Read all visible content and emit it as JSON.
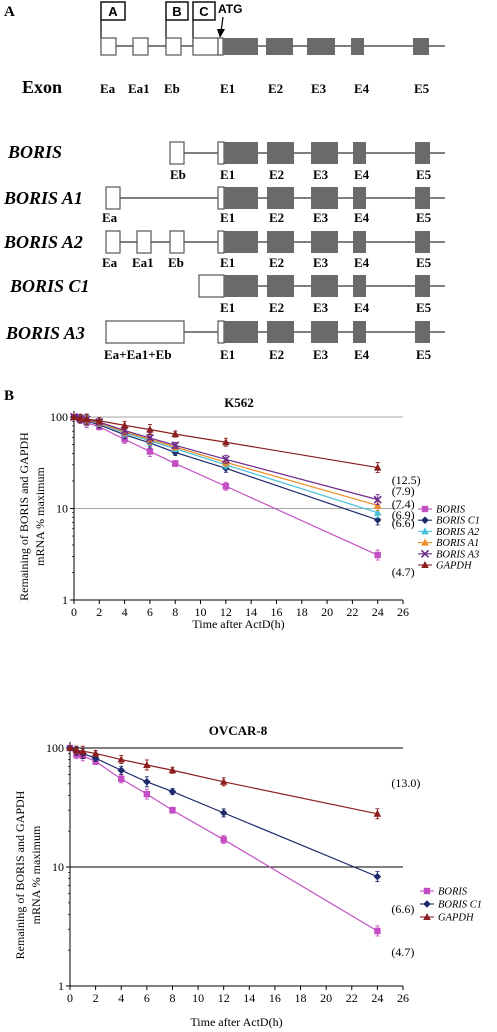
{
  "panel_a": {
    "letter": "A",
    "boxes": [
      "A",
      "B",
      "C"
    ],
    "atg": "ATG",
    "exon_row_title": "Exon",
    "exon_labels": {
      "ea": "Ea",
      "ea1": "Ea1",
      "eb": "Eb",
      "e1": "E1",
      "e2": "E2",
      "e3": "E3",
      "e4": "E4",
      "e5": "E5",
      "combined": "Ea+Ea1+Eb"
    },
    "isoforms": [
      "BORIS",
      "BORIS A1",
      "BORIS A2",
      "BORIS C1",
      "BORIS A3"
    ]
  },
  "panel_b": {
    "letter": "B"
  },
  "chart_data": [
    {
      "type": "line",
      "title": "K562",
      "xlabel": "Time after ActD(h)",
      "ylabel": [
        "Remaining of BORIS and GAPDH",
        "mRNA % maximum"
      ],
      "x": [
        0,
        0.5,
        1,
        2,
        4,
        6,
        8,
        12,
        24
      ],
      "xlim": [
        0,
        26
      ],
      "xticks": [
        "0",
        "2",
        "4",
        "6",
        "8",
        "10",
        "12",
        "14",
        "16",
        "18",
        "20",
        "22",
        "24",
        "26"
      ],
      "ylim": [
        1,
        100
      ],
      "yscale": "log",
      "yticks": [
        "100",
        "10",
        "1"
      ],
      "grid": "horizontal",
      "legend_position": "right",
      "series": [
        {
          "name": "BORIS",
          "color": "#c44fc4",
          "marker": "square",
          "values": [
            100,
            94,
            87,
            78,
            57,
            42,
            31,
            17.5,
            3.1
          ],
          "end_label": "(4.7)"
        },
        {
          "name": "BORIS C1",
          "color": "#1d2a6b",
          "marker": "diamond",
          "values": [
            100,
            95,
            91,
            82,
            64,
            52,
            41,
            27.5,
            7.5
          ],
          "end_label": "(6.6)"
        },
        {
          "name": "BORIS A2",
          "color": "#46c0d8",
          "marker": "triangle",
          "values": [
            100,
            96,
            92,
            85,
            67,
            55,
            45,
            30,
            9
          ],
          "end_label": "(6.9)"
        },
        {
          "name": "BORIS A1",
          "color": "#ee8a1f",
          "marker": "triangle",
          "values": [
            100,
            96,
            93,
            86,
            69,
            57,
            47,
            32,
            10.8
          ],
          "end_label": "(7.4)"
        },
        {
          "name": "BORIS A3",
          "color": "#6b2b8a",
          "marker": "x",
          "values": [
            100,
            96,
            94,
            88,
            71,
            59,
            49,
            34.5,
            12.5
          ],
          "end_label": "(7.9)"
        },
        {
          "name": "GAPDH",
          "color": "#8b1e1e",
          "marker": "triangle",
          "values": [
            100,
            97,
            95,
            91,
            81,
            73,
            65,
            53,
            28
          ],
          "end_label": "(12.5)"
        }
      ]
    },
    {
      "type": "line",
      "title": "OVCAR-8",
      "xlabel": "Time after ActD(h)",
      "ylabel": [
        "Remaining of BORIS and GAPDH",
        "mRNA % maximum"
      ],
      "x": [
        0,
        0.5,
        1,
        2,
        4,
        6,
        8,
        12,
        24
      ],
      "xlim": [
        0,
        26
      ],
      "xticks": [
        "0",
        "2",
        "4",
        "6",
        "8",
        "10",
        "12",
        "14",
        "16",
        "18",
        "20",
        "22",
        "24",
        "26"
      ],
      "ylim": [
        1,
        100
      ],
      "yscale": "log",
      "yticks": [
        "100",
        "10",
        "1"
      ],
      "grid": "horizontal",
      "legend_position": "right",
      "series": [
        {
          "name": "BORIS",
          "color": "#c44fc4",
          "marker": "square",
          "values": [
            100,
            88,
            86,
            77,
            55,
            41,
            30,
            17,
            2.9
          ],
          "end_label": "(4.7)"
        },
        {
          "name": "BORIS C1",
          "color": "#1d2a6b",
          "marker": "diamond",
          "values": [
            100,
            94,
            90,
            82,
            65,
            52,
            43,
            28.5,
            8.3
          ],
          "end_label": "(6.6)"
        },
        {
          "name": "GAPDH",
          "color": "#8b1e1e",
          "marker": "triangle",
          "values": [
            100,
            96,
            94,
            90,
            80,
            72,
            65,
            52,
            28
          ],
          "end_label": "(13.0)"
        }
      ]
    }
  ]
}
